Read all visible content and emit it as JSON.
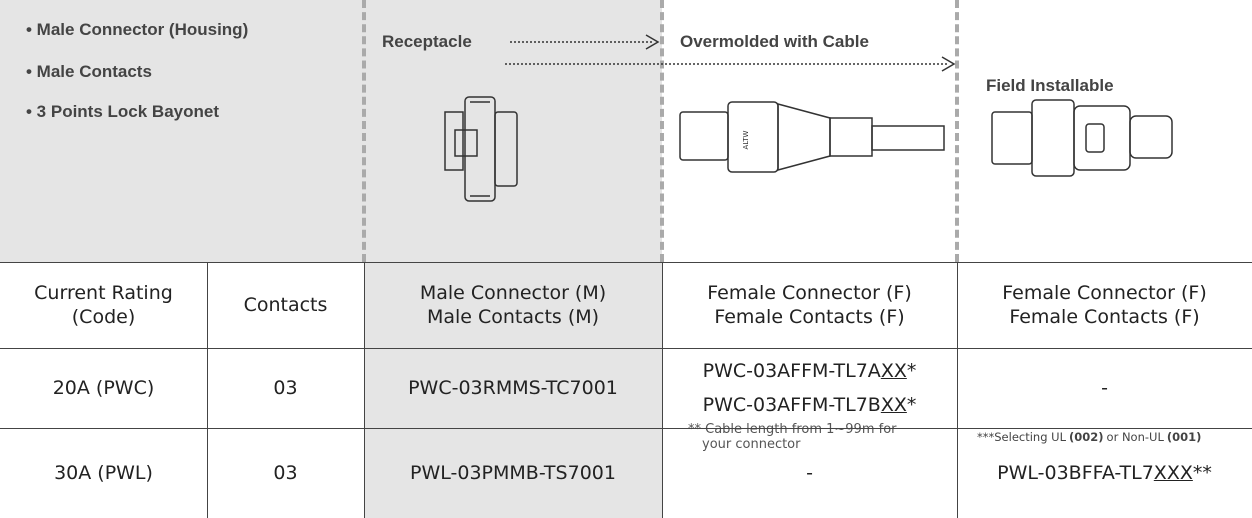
{
  "header": {
    "features": [
      "• Male Connector (Housing)",
      "• Male Contacts",
      "• 3 Points Lock Bayonet"
    ],
    "receptacle": "Receptacle",
    "overmolded": "Overmolded with Cable",
    "field": "Field Installable",
    "cable_note": [
      "** Cable length from 1~99m for",
      "your connector"
    ],
    "ul_note": [
      "***Selecting UL",
      "(002)",
      "or Non-UL",
      "(001)"
    ]
  },
  "table": {
    "columns": [
      [
        "Current Rating",
        "(Code)"
      ],
      [
        "Contacts"
      ],
      [
        "Male Connector (M)",
        "Male Contacts (M)"
      ],
      [
        "Female Connector (F)",
        "Female Contacts (F)"
      ],
      [
        "Female Connector (F)",
        "Female Contacts (F)"
      ]
    ],
    "rows": [
      [
        "20A (PWC)",
        "03",
        "PWC-03RMMS-TC7001",
        [
          [
            "PWC-03AFFM-TL7A",
            "XX",
            "*"
          ],
          [
            "PWC-03AFFM-TL7B",
            "XX",
            "*"
          ]
        ],
        "-"
      ],
      [
        "30A (PWL)",
        "03",
        "PWL-03PMMB-TS7001",
        "-",
        [
          [
            "PWL-03BFFA-TL7",
            "XXX",
            "**"
          ]
        ]
      ]
    ]
  }
}
